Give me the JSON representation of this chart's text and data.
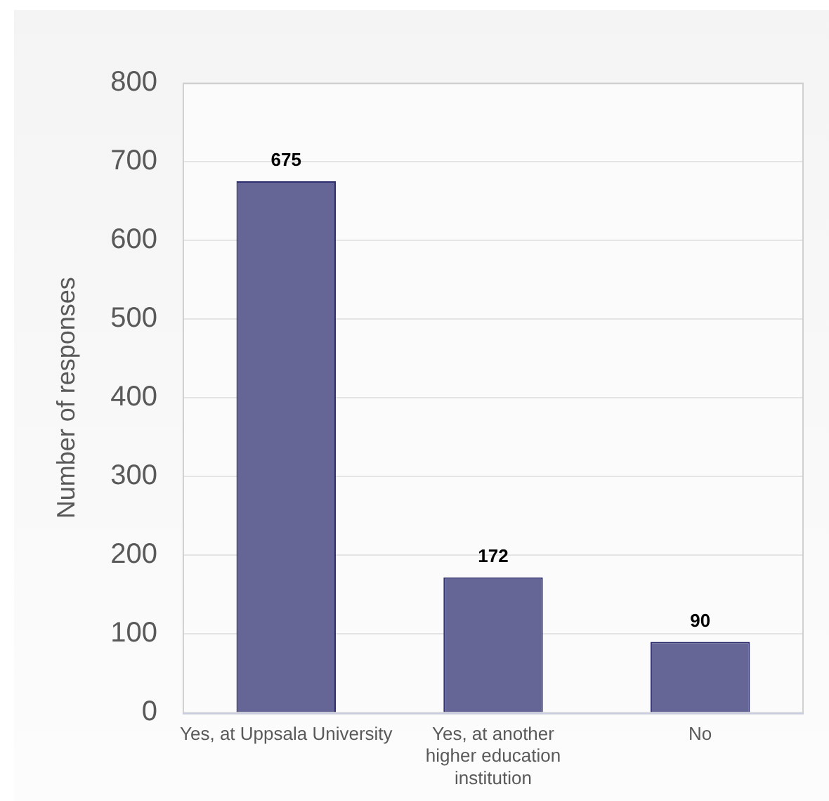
{
  "chart_data": {
    "type": "bar",
    "ylabel": "Number of responses",
    "categories": [
      "Yes, at Uppsala University",
      "Yes, at another higher education institution",
      "No"
    ],
    "values": [
      675,
      172,
      90
    ],
    "color": "#656696",
    "ylim": [
      0,
      800
    ],
    "yticks": [
      0,
      100,
      200,
      300,
      400,
      500,
      600,
      700,
      800
    ],
    "grid": "y",
    "data_labels": true,
    "legend": false
  }
}
